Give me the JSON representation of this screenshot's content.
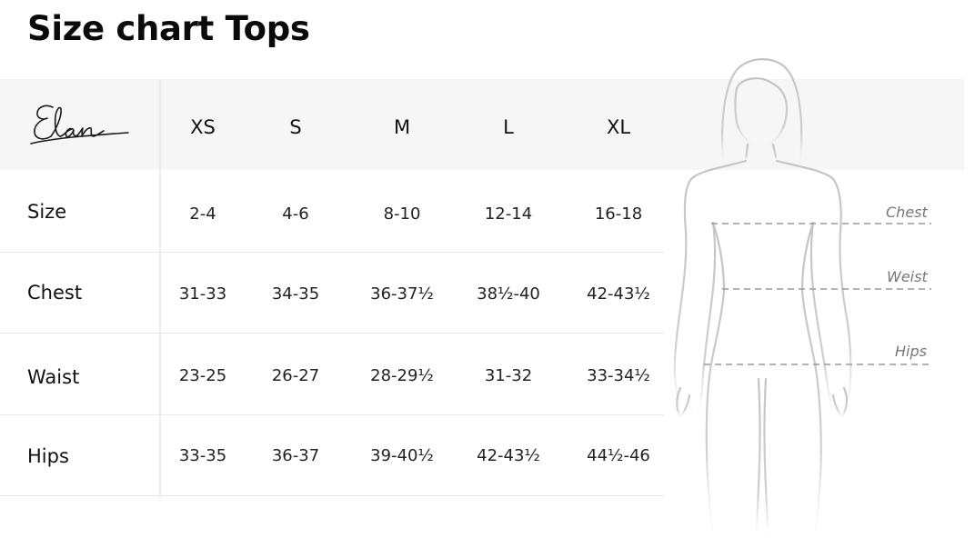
{
  "page": {
    "title": "Size chart Tops"
  },
  "brand": {
    "logo_text": "Elan"
  },
  "table": {
    "size_headers": [
      "XS",
      "S",
      "M",
      "L",
      "XL"
    ],
    "rows": [
      {
        "label": "Size",
        "values": [
          "2-4",
          "4-6",
          "8-10",
          "12-14",
          "16-18"
        ]
      },
      {
        "label": "Chest",
        "values": [
          "31-33",
          "34-35",
          "36-37½",
          "38½-40",
          "42-43½"
        ]
      },
      {
        "label": "Waist",
        "values": [
          "23-25",
          "26-27",
          "28-29½",
          "31-32",
          "33-34½"
        ]
      },
      {
        "label": "Hips",
        "values": [
          "33-35",
          "36-37",
          "39-40½",
          "42-43½",
          "44½-46"
        ]
      }
    ]
  },
  "figure": {
    "labels": {
      "chest": "Chest",
      "waist": "Weist",
      "hips": "Hips"
    }
  },
  "colors": {
    "header_band": "#f6f6f6",
    "text": "#111111",
    "figure_stroke": "#cfcfcf",
    "measure_line": "#9a9a9a"
  }
}
